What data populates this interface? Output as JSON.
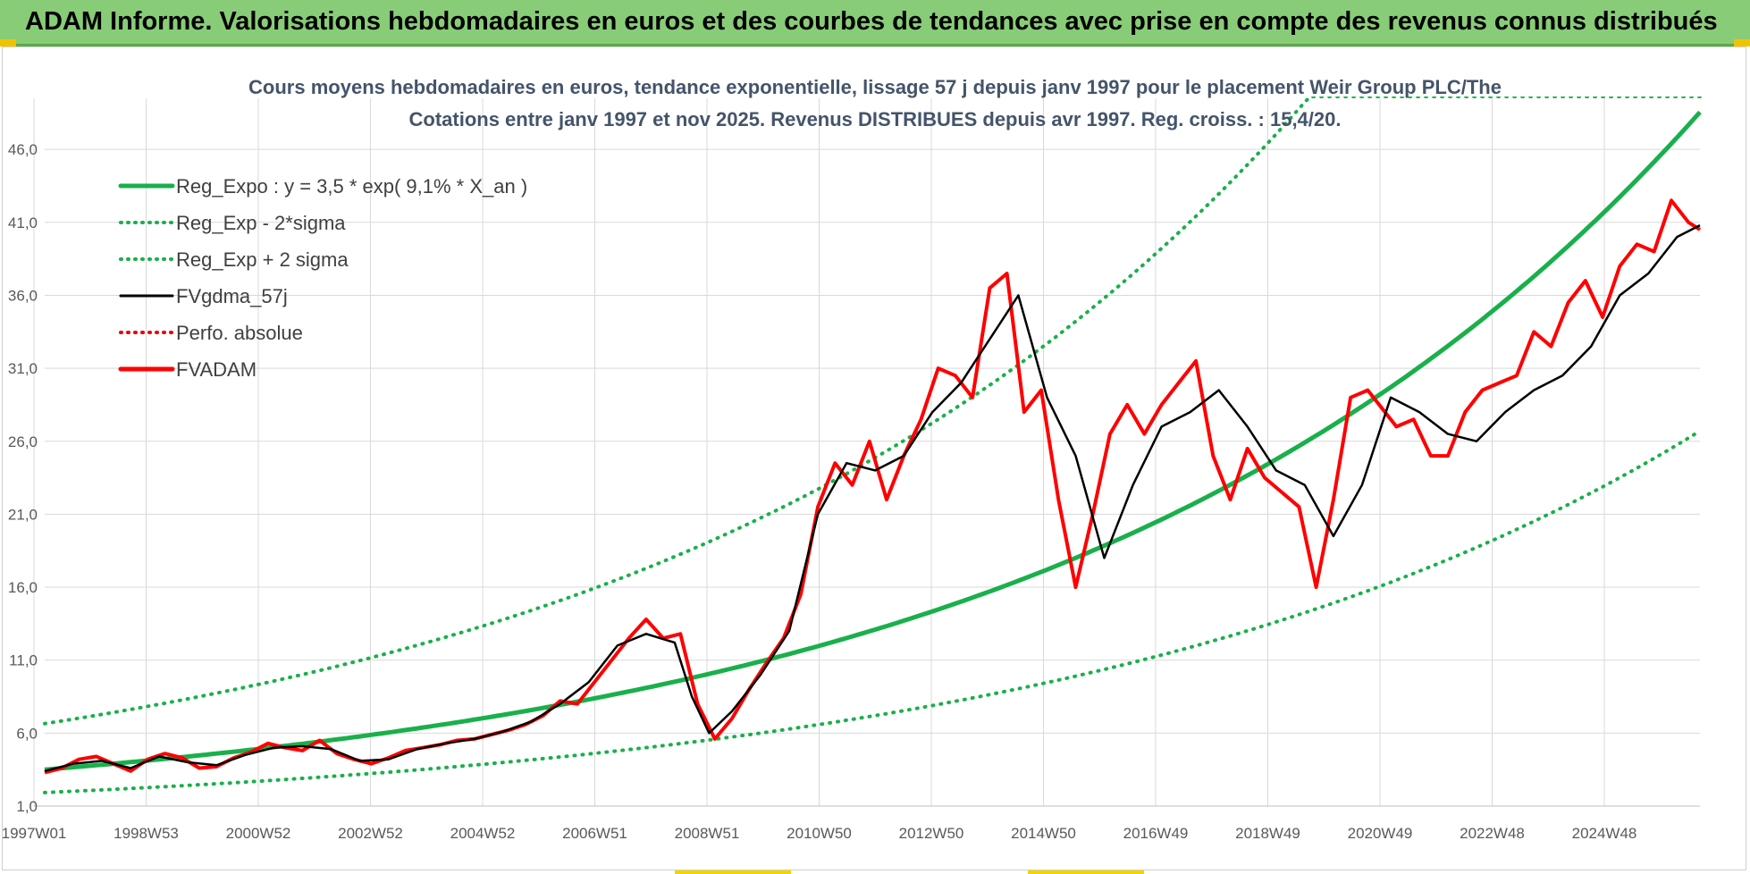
{
  "banner": {
    "title": "ADAM Informe. Valorisations hebdomadaires en euros et des courbes de tendances avec prise en compte des revenus connus distribués",
    "color": "#88cc77"
  },
  "chart_data": {
    "type": "line",
    "title": "Cours moyens hebdomadaires en euros, tendance exponentielle, lissage 57 j depuis janv 1997 pour le placement Weir Group PLC/The",
    "subtitle": "Cotations entre janv 1997 et nov 2025. Revenus DISTRIBUES depuis avr 1997. Reg. croiss. : 15,4/20.",
    "xlabel": "",
    "ylabel": "",
    "ylim": [
      1,
      49.5
    ],
    "yticks": [
      "46,0",
      "41,0",
      "36,0",
      "31,0",
      "26,0",
      "21,0",
      "16,0",
      "11,0",
      "6,0",
      "1,0"
    ],
    "xlim": [
      1997.0,
      2025.9
    ],
    "xticks": [
      "1997W01",
      "1998W53",
      "2000W52",
      "2002W52",
      "2004W52",
      "2006W51",
      "2008W51",
      "2010W50",
      "2012W50",
      "2014W50",
      "2016W49",
      "2018W49",
      "2020W49",
      "2022W48",
      "2024W48"
    ],
    "grid": true,
    "legend_position": "top-left",
    "legend": [
      {
        "name": "Reg_Expo : y = 3,5 * exp( 9,1% *  X_an )",
        "color": "#19b04b",
        "style": "solid-thick"
      },
      {
        "name": "Reg_Exp - 2*sigma",
        "color": "#19b04b",
        "style": "dotted"
      },
      {
        "name": "Reg_Exp + 2 sigma",
        "color": "#19b04b",
        "style": "dotted"
      },
      {
        "name": "FVgdma_57j",
        "color": "#000000",
        "style": "solid"
      },
      {
        "name": "Perfo. absolue",
        "color": "#e8000b",
        "style": "dotted"
      },
      {
        "name": "FVADAM",
        "color": "#ff0000",
        "style": "solid-thick"
      }
    ],
    "regression": {
      "a": 3.5,
      "rate": 0.091,
      "lower_factor": 0.55,
      "upper_factor": 1.9
    },
    "series": [
      {
        "name": "FVADAM",
        "x": [
          1997.0,
          1997.3,
          1997.6,
          1997.9,
          1998.2,
          1998.5,
          1998.8,
          1999.1,
          1999.4,
          1999.7,
          2000.0,
          2000.3,
          2000.6,
          2000.9,
          2001.2,
          2001.5,
          2001.8,
          2002.1,
          2002.4,
          2002.7,
          2003.0,
          2003.3,
          2003.6,
          2003.9,
          2004.2,
          2004.5,
          2004.8,
          2005.1,
          2005.4,
          2005.7,
          2006.0,
          2006.3,
          2006.6,
          2006.9,
          2007.2,
          2007.5,
          2007.8,
          2008.1,
          2008.4,
          2008.7,
          2009.0,
          2009.3,
          2009.6,
          2009.9,
          2010.2,
          2010.5,
          2010.8,
          2011.1,
          2011.4,
          2011.7,
          2012.0,
          2012.3,
          2012.6,
          2012.9,
          2013.2,
          2013.5,
          2013.8,
          2014.1,
          2014.4,
          2014.7,
          2015.0,
          2015.3,
          2015.6,
          2015.9,
          2016.2,
          2016.5,
          2016.8,
          2017.1,
          2017.4,
          2017.7,
          2018.0,
          2018.3,
          2018.6,
          2018.9,
          2019.2,
          2019.5,
          2019.8,
          2020.1,
          2020.3,
          2020.6,
          2020.9,
          2021.2,
          2021.5,
          2021.8,
          2022.1,
          2022.4,
          2022.7,
          2023.0,
          2023.3,
          2023.6,
          2023.9,
          2024.2,
          2024.5,
          2024.8,
          2025.1,
          2025.4,
          2025.7,
          2025.9
        ],
        "values": [
          3.3,
          3.6,
          4.2,
          4.4,
          3.9,
          3.4,
          4.2,
          4.6,
          4.3,
          3.6,
          3.7,
          4.3,
          4.7,
          5.3,
          5.0,
          4.8,
          5.5,
          4.6,
          4.2,
          3.9,
          4.3,
          4.8,
          5.0,
          5.2,
          5.5,
          5.6,
          5.9,
          6.2,
          6.6,
          7.2,
          8.2,
          8.0,
          9.5,
          11.0,
          12.5,
          13.8,
          12.5,
          12.8,
          8.0,
          5.6,
          7.0,
          9.0,
          10.8,
          12.5,
          15.5,
          21.5,
          24.5,
          23.0,
          26.0,
          22.0,
          25.0,
          27.5,
          31.0,
          30.5,
          29.0,
          36.5,
          37.5,
          28.0,
          29.5,
          22.0,
          16.0,
          21.0,
          26.5,
          28.5,
          26.5,
          28.5,
          30.0,
          31.5,
          25.0,
          22.0,
          25.5,
          23.5,
          22.5,
          21.5,
          16.0,
          22.0,
          29.0,
          29.5,
          28.5,
          27.0,
          27.5,
          25.0,
          25.0,
          28.0,
          29.5,
          30.0,
          30.5,
          33.5,
          32.5,
          35.5,
          37.0,
          34.5,
          38.0,
          39.5,
          39.0,
          42.5,
          41.0,
          40.5
        ]
      },
      {
        "name": "FVgdma_57j",
        "x": [
          1997.0,
          1997.5,
          1998.0,
          1998.5,
          1999.0,
          1999.5,
          2000.0,
          2000.5,
          2001.0,
          2001.5,
          2002.0,
          2002.5,
          2003.0,
          2003.5,
          2004.0,
          2004.5,
          2005.0,
          2005.5,
          2006.0,
          2006.5,
          2007.0,
          2007.5,
          2008.0,
          2008.3,
          2008.6,
          2009.0,
          2009.5,
          2010.0,
          2010.5,
          2011.0,
          2011.5,
          2012.0,
          2012.5,
          2013.0,
          2013.5,
          2014.0,
          2014.5,
          2015.0,
          2015.5,
          2016.0,
          2016.5,
          2017.0,
          2017.5,
          2018.0,
          2018.5,
          2019.0,
          2019.5,
          2020.0,
          2020.5,
          2021.0,
          2021.5,
          2022.0,
          2022.5,
          2023.0,
          2023.5,
          2024.0,
          2024.5,
          2025.0,
          2025.5,
          2025.9
        ],
        "values": [
          3.4,
          3.9,
          4.1,
          3.6,
          4.4,
          4.0,
          3.8,
          4.5,
          5.0,
          5.1,
          4.9,
          4.1,
          4.2,
          4.9,
          5.3,
          5.6,
          6.1,
          6.8,
          8.0,
          9.5,
          12.0,
          12.8,
          12.2,
          8.5,
          6.0,
          7.5,
          10.0,
          13.0,
          21.0,
          24.5,
          24.0,
          25.0,
          28.0,
          30.0,
          33.0,
          36.0,
          29.0,
          25.0,
          18.0,
          23.0,
          27.0,
          28.0,
          29.5,
          27.0,
          24.0,
          23.0,
          19.5,
          23.0,
          29.0,
          28.0,
          26.5,
          26.0,
          28.0,
          29.5,
          30.5,
          32.5,
          36.0,
          37.5,
          40.0,
          40.8
        ]
      }
    ]
  }
}
